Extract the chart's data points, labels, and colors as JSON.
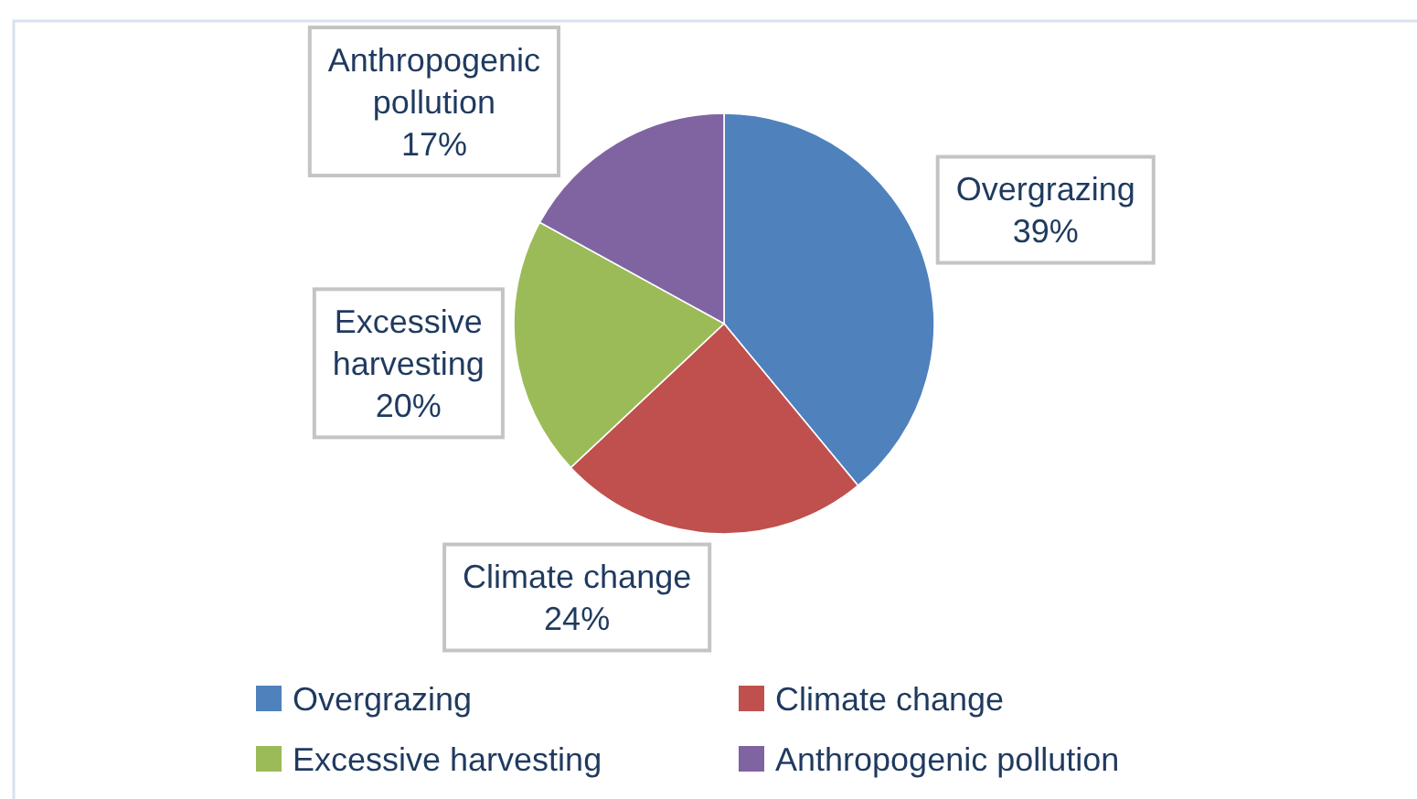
{
  "chart_data": {
    "type": "pie",
    "categories": [
      "Overgrazing",
      "Climate change",
      "Excessive harvesting",
      "Anthropogenic pollution"
    ],
    "values": [
      39,
      24,
      20,
      17
    ],
    "colors": [
      "#4f81bd",
      "#c0504d",
      "#9bbb59",
      "#8064a2"
    ],
    "value_labels": [
      "39%",
      "24%",
      "20%",
      "17%"
    ],
    "legend": "bottom"
  }
}
